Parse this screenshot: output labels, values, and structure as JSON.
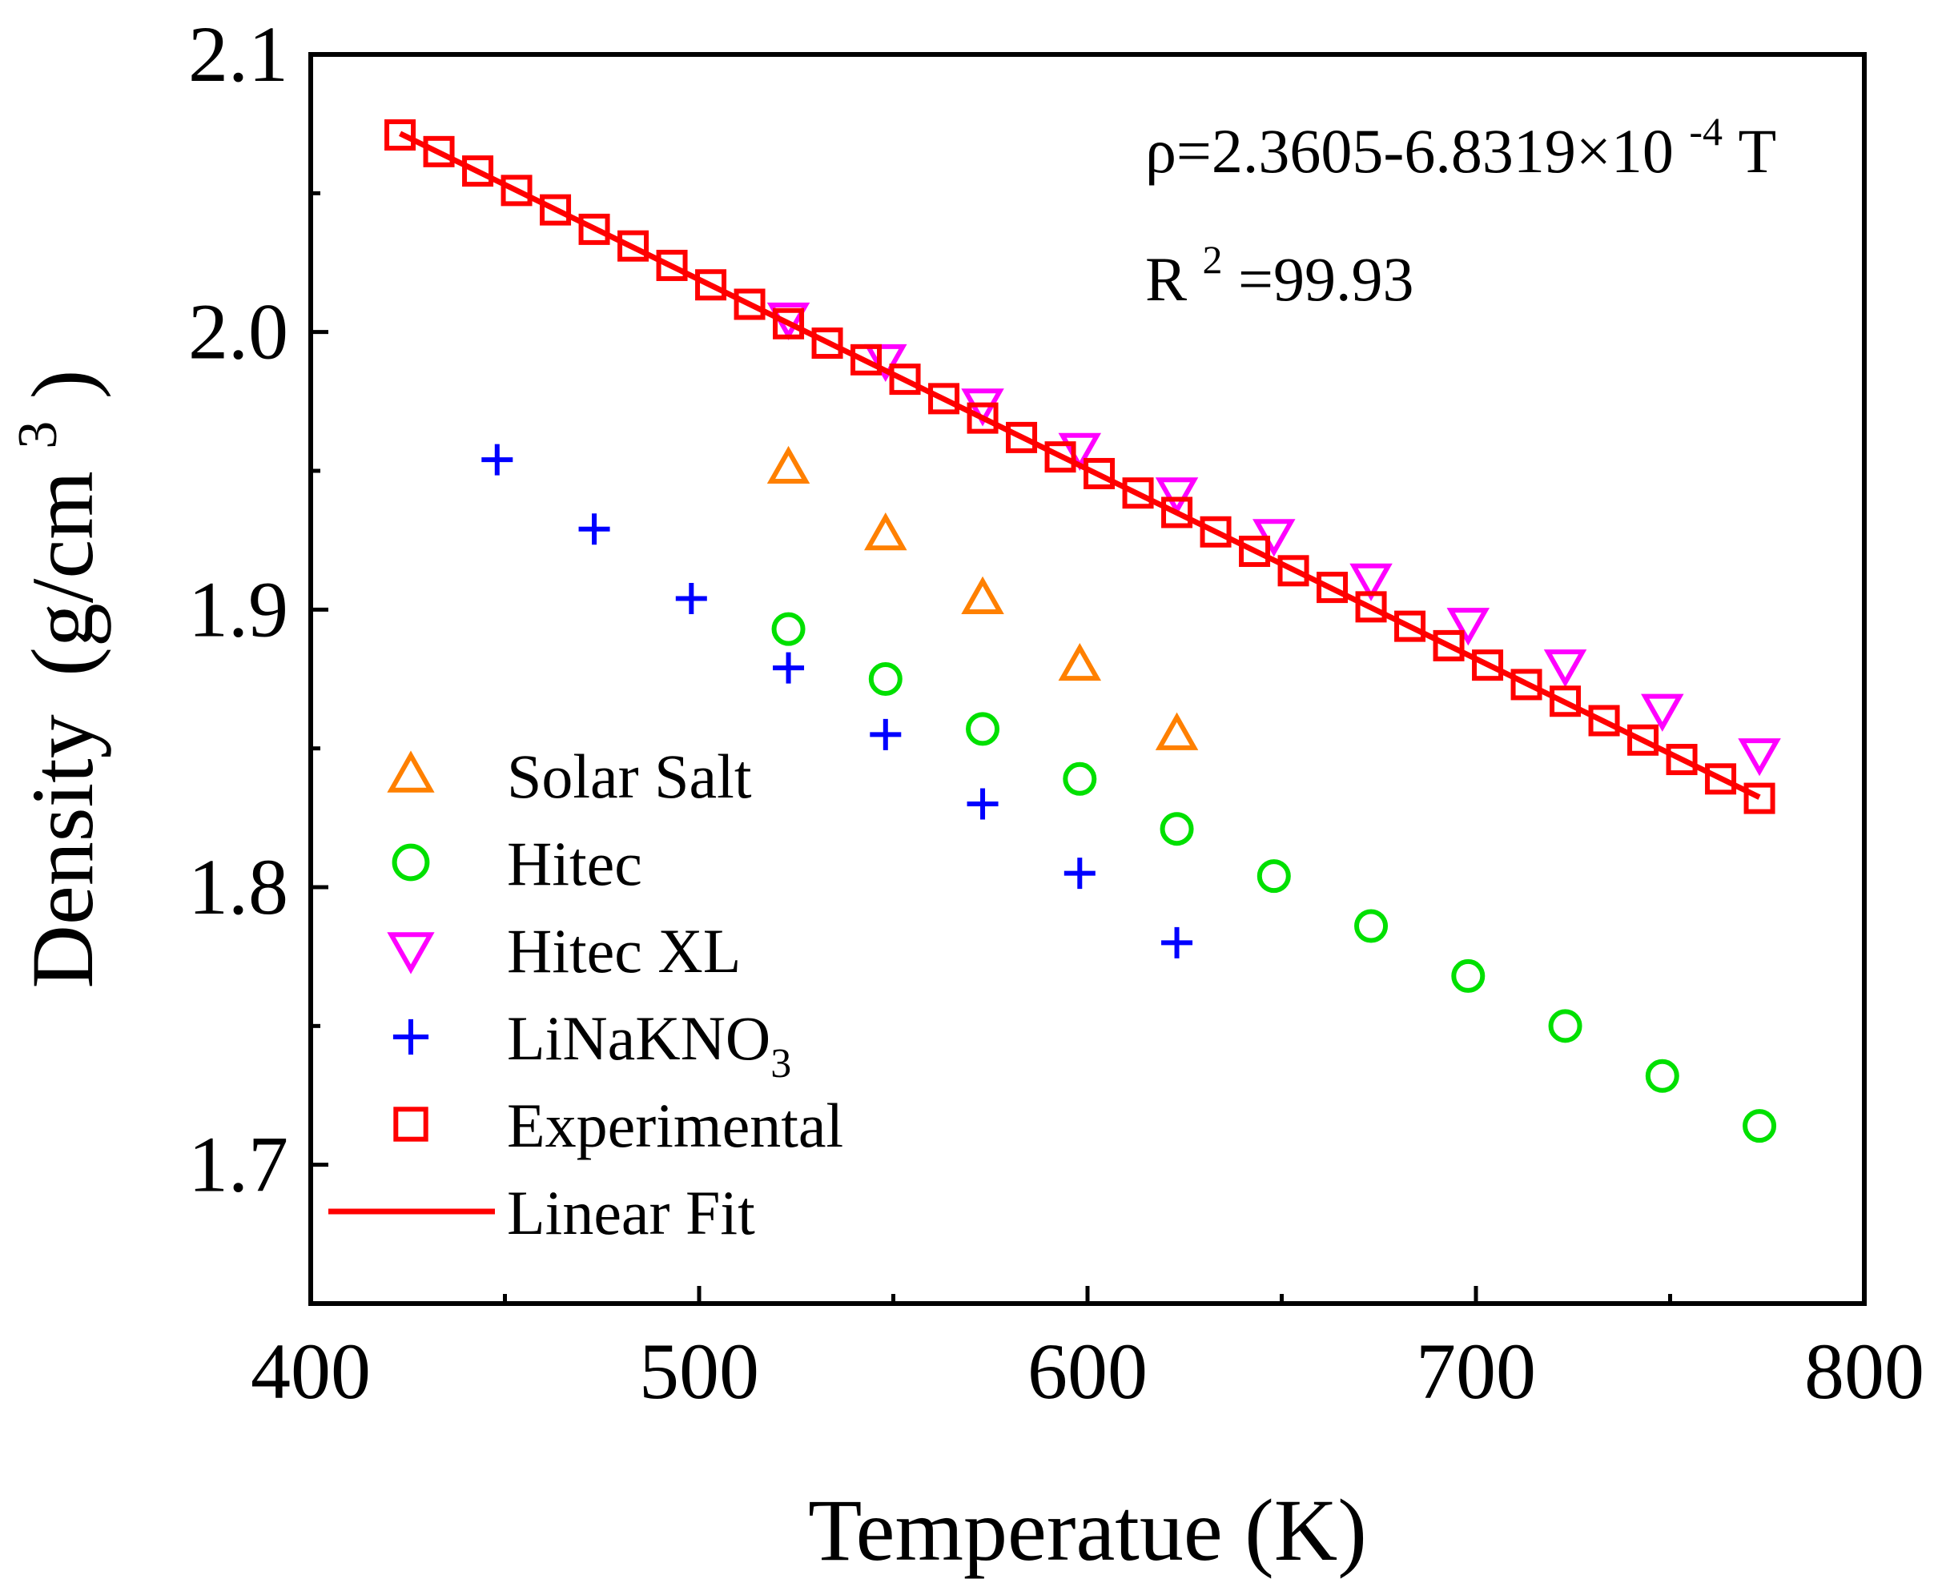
{
  "chart_data": {
    "type": "scatter",
    "title": "",
    "xlabel": "Temperatue (K)",
    "ylabel_main": "Density",
    "ylabel_unit_prefix": "(g/cm",
    "ylabel_unit_sup": "3",
    "ylabel_unit_suffix": ")",
    "xlim": [
      400,
      800
    ],
    "ylim": [
      1.65,
      2.1
    ],
    "x_ticks": [
      400,
      500,
      600,
      700,
      800
    ],
    "x_tick_labels": [
      "400",
      "500",
      "600",
      "700",
      "800"
    ],
    "x_minor_ticks": [
      450,
      550,
      650,
      750
    ],
    "y_ticks": [
      1.7,
      1.8,
      1.9,
      2.0,
      2.1
    ],
    "y_tick_labels": [
      "1.7",
      "1.8",
      "1.9",
      "2.0",
      "2.1"
    ],
    "y_minor_ticks": [
      1.75,
      1.85,
      1.95,
      2.05
    ],
    "grid": false,
    "legend_position": "lower-left",
    "annotations": {
      "equation_prefix": "ρ=2.3605-6.8319×10",
      "equation_sup": "-4",
      "equation_suffix": "T",
      "r2_prefix": "R",
      "r2_sup": "2",
      "r2_suffix": "=99.93"
    },
    "series": [
      {
        "name": "Solar Salt",
        "label_main": "Solar Salt",
        "label_sub": "",
        "marker": "triangle-up",
        "color": "#ff8000",
        "x": [
          523,
          548,
          573,
          598,
          623
        ],
        "y": [
          1.951,
          1.927,
          1.904,
          1.88,
          1.855
        ]
      },
      {
        "name": "Hitec",
        "label_main": "Hitec",
        "label_sub": "",
        "marker": "circle",
        "color": "#00e000",
        "x": [
          523,
          548,
          573,
          598,
          623,
          648,
          673,
          698,
          723,
          748,
          773
        ],
        "y": [
          1.893,
          1.875,
          1.857,
          1.839,
          1.821,
          1.804,
          1.786,
          1.768,
          1.75,
          1.732,
          1.714
        ]
      },
      {
        "name": "Hitec XL",
        "label_main": "Hitec XL",
        "label_sub": "",
        "marker": "triangle-down",
        "color": "#ff00ff",
        "x": [
          523,
          548,
          573,
          598,
          623,
          648,
          673,
          698,
          723,
          748,
          773
        ],
        "y": [
          2.005,
          1.99,
          1.974,
          1.958,
          1.942,
          1.927,
          1.911,
          1.895,
          1.88,
          1.864,
          1.848
        ]
      },
      {
        "name": "LiNaKNO3",
        "label_main": "LiNaKNO",
        "label_sub": "3",
        "marker": "plus",
        "color": "#0000ff",
        "x": [
          448,
          473,
          498,
          523,
          548,
          573,
          598,
          623
        ],
        "y": [
          1.954,
          1.929,
          1.904,
          1.879,
          1.855,
          1.83,
          1.805,
          1.78
        ]
      },
      {
        "name": "Experimental",
        "label_main": "Experimental",
        "label_sub": "",
        "marker": "square",
        "color": "#ff0000",
        "x": [
          423,
          433,
          443,
          453,
          463,
          473,
          483,
          493,
          503,
          513,
          523,
          533,
          543,
          553,
          563,
          573,
          583,
          593,
          603,
          613,
          623,
          633,
          643,
          653,
          663,
          673,
          683,
          693,
          703,
          713,
          723,
          733,
          743,
          753,
          763,
          773
        ],
        "y": [
          2.071,
          2.065,
          2.058,
          2.051,
          2.044,
          2.037,
          2.031,
          2.024,
          2.017,
          2.01,
          2.003,
          1.996,
          1.99,
          1.983,
          1.976,
          1.969,
          1.962,
          1.955,
          1.949,
          1.942,
          1.935,
          1.928,
          1.921,
          1.914,
          1.908,
          1.901,
          1.894,
          1.887,
          1.88,
          1.873,
          1.867,
          1.86,
          1.853,
          1.846,
          1.839,
          1.832
        ]
      },
      {
        "name": "Linear Fit",
        "label_main": "Linear Fit",
        "label_sub": "",
        "marker": "line",
        "color": "#ff0000",
        "intercept": 2.3605,
        "slope": -0.00068319,
        "x_range": [
          423,
          773
        ]
      }
    ]
  }
}
